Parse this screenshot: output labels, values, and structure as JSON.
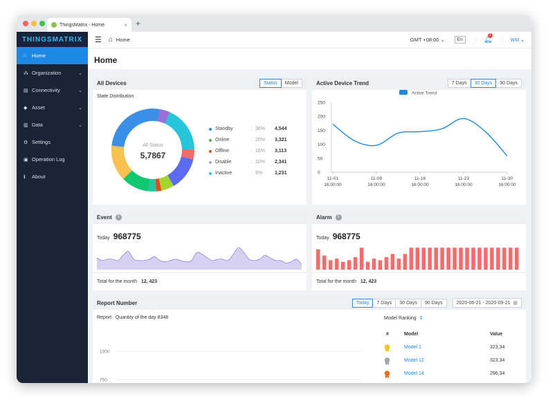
{
  "browser": {
    "tab_title": "ThingsMatrix - Home",
    "tab_close": "×",
    "new_tab": "+"
  },
  "sidebar": {
    "logo": "THINGSMATRIX",
    "items": [
      {
        "label": "Home",
        "icon": "home-icon",
        "glyph": "⌂",
        "active": true
      },
      {
        "label": "Organization",
        "icon": "organization-icon",
        "glyph": "⁂",
        "chevron": "⌄"
      },
      {
        "label": "Connectivity",
        "icon": "connectivity-icon",
        "glyph": "▤",
        "chevron": "⌄"
      },
      {
        "label": "Asset",
        "icon": "asset-icon",
        "glyph": "◆",
        "chevron": "⌄"
      },
      {
        "label": "Data",
        "icon": "data-icon",
        "glyph": "▥",
        "chevron": "⌄"
      },
      {
        "label": "Settings",
        "icon": "settings-icon",
        "glyph": "⚙"
      },
      {
        "label": "Operation Log",
        "icon": "operation-log-icon",
        "glyph": "▣"
      },
      {
        "label": "About",
        "icon": "about-icon",
        "glyph": "ℹ"
      }
    ]
  },
  "topbar": {
    "breadcrumb": "Home",
    "timezone": "GMT +08:00",
    "timezone_chevron": "⌄",
    "language": "En",
    "notification_count": "1",
    "user": "WM",
    "user_chevron": "⌄"
  },
  "page_title": "Home",
  "all_devices": {
    "title": "All Devices",
    "toggle": [
      "Status",
      "Model"
    ],
    "selected": "Status",
    "subtitle": "State Distribution",
    "center_label": "All Status",
    "center_value": "5,7867",
    "legend": [
      {
        "name": "Standby",
        "percent": "36%",
        "value": "4,544",
        "color": "#1e88e5"
      },
      {
        "name": "Online",
        "percent": "20%",
        "value": "3,321",
        "color": "#4caf50"
      },
      {
        "name": "Offline",
        "percent": "16%",
        "value": "3,113",
        "color": "#e64a19"
      },
      {
        "name": "Disable",
        "percent": "10%",
        "value": "2,341",
        "color": "#b39ddb"
      },
      {
        "name": "Inactive",
        "percent": "9%",
        "value": "1,231",
        "color": "#26c6da"
      }
    ],
    "donut_colors": [
      "#26c6da",
      "#f06c6c",
      "#5c6cf2",
      "#a5d62c",
      "#e64a19",
      "#26c6a0",
      "#10c870",
      "#f8c150",
      "#3a8fe8",
      "#9b6ed6"
    ]
  },
  "trend": {
    "title": "Active Device Trend",
    "toggle": [
      "7 Days",
      "30 Days",
      "90 Days"
    ],
    "selected": "30 Days",
    "legend": "Active Trend",
    "y_ticks": [
      "250",
      "200",
      "150",
      "100",
      "50",
      "0"
    ],
    "x_ticks": [
      {
        "date": "11-01",
        "time": "16:00:00"
      },
      {
        "date": "11-09",
        "time": "16:00:00"
      },
      {
        "date": "11-16",
        "time": "16:00:00"
      },
      {
        "date": "11-23",
        "time": "16:00:00"
      },
      {
        "date": "11-30",
        "time": "16:00:00"
      }
    ],
    "color": "#1e88e5"
  },
  "event": {
    "title": "Event",
    "today_label": "Today",
    "today_value": "968775",
    "month_label": "Total for the month",
    "month_value": "12, 423"
  },
  "alarm": {
    "title": "Alarm",
    "today_label": "Today",
    "today_value": "968775",
    "month_label": "Total for the month",
    "month_value": "12, 423",
    "color": "#f66b6b"
  },
  "report": {
    "title": "Report Number",
    "toggle": [
      "Today",
      "7 Days",
      "30 Days",
      "90 Days"
    ],
    "selected": "Today",
    "date_range": "2020-06-21 - 2020-09-21",
    "report_label": "Report",
    "quantity_label": "Quantity of the day 8348",
    "y_ticks": [
      "1000",
      "750"
    ],
    "ranking_title": "Model Ranking",
    "ranking_sort_icon": "⇕",
    "ranking_headers": [
      "#",
      "Model",
      "Value"
    ],
    "ranking": [
      {
        "model": "Model 1",
        "value": "323,34",
        "medal": "#f5c518"
      },
      {
        "model": "Model 12",
        "value": "323,34",
        "medal": "#9ea7ad"
      },
      {
        "model": "Model 14",
        "value": "296,34",
        "medal": "#e8701a"
      }
    ]
  },
  "chart_data": [
    {
      "type": "pie",
      "title": "State Distribution",
      "categories": [
        "Standby",
        "Online",
        "Offline",
        "Disable",
        "Inactive"
      ],
      "values": [
        4544,
        3321,
        3113,
        2341,
        1231
      ],
      "percents": [
        36,
        20,
        16,
        10,
        9
      ]
    },
    {
      "type": "line",
      "title": "Active Device Trend",
      "series": [
        {
          "name": "Active Trend",
          "x": [
            "11-01",
            "11-05",
            "11-09",
            "11-12",
            "11-16",
            "11-20",
            "11-23",
            "11-26",
            "11-30"
          ],
          "values": [
            172,
            112,
            96,
            140,
            145,
            155,
            192,
            145,
            58
          ]
        }
      ],
      "x_ticks": [
        "11-01 16:00:00",
        "11-09 16:00:00",
        "11-16 16:00:00",
        "11-23 16:00:00",
        "11-30 16:00:00"
      ],
      "ylim": [
        0,
        250
      ]
    },
    {
      "type": "area",
      "title": "Event",
      "values": [
        18,
        14,
        16,
        16,
        14,
        22,
        28,
        16,
        14,
        14,
        16,
        20,
        14,
        12,
        14,
        16,
        14,
        12,
        14,
        26,
        24,
        18,
        14,
        16,
        16,
        14,
        24,
        34,
        26,
        16,
        14,
        16,
        22,
        18,
        14,
        14,
        10,
        12,
        16,
        8
      ]
    },
    {
      "type": "bar",
      "title": "Alarm",
      "values": [
        26,
        18,
        12,
        14,
        10,
        12,
        16,
        28,
        10,
        14,
        12,
        16,
        20,
        14,
        20,
        28,
        28,
        28,
        28,
        28,
        28,
        28,
        28,
        28,
        28,
        28,
        28,
        28,
        28,
        28,
        28,
        28,
        28
      ]
    }
  ]
}
